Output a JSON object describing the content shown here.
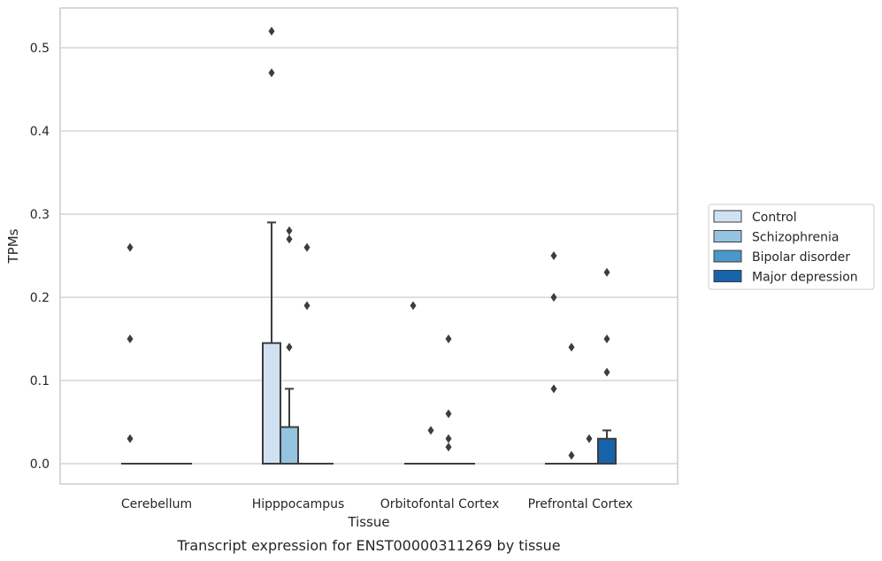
{
  "caption": "Transcript expression for ENST00000311269 by tissue",
  "chart_data": {
    "type": "box",
    "xlabel": "Tissue",
    "ylabel": "TPMs",
    "ylim": [
      -0.025,
      0.548
    ],
    "yticks": [
      "0.0",
      "0.1",
      "0.2",
      "0.3",
      "0.4",
      "0.5"
    ],
    "ytick_values": [
      0.0,
      0.1,
      0.2,
      0.3,
      0.4,
      0.5
    ],
    "categories": [
      "Cerebellum",
      "Hipppocampus",
      "Orbitofontal Cortex",
      "Prefrontal Cortex"
    ],
    "grid": true,
    "legend_position": "right",
    "series": [
      {
        "name": "Control",
        "color": "#d0e1f2",
        "boxes": [
          {
            "q1": 0,
            "median": 0,
            "q3": 0,
            "whisker_low": 0,
            "whisker_high": 0,
            "outliers": [
              0.26,
              0.15,
              0.03
            ]
          },
          {
            "q1": 0,
            "median": 0,
            "q3": 0.145,
            "whisker_low": 0,
            "whisker_high": 0.29,
            "outliers": [
              0.47,
              0.52
            ]
          },
          {
            "q1": 0,
            "median": 0,
            "q3": 0,
            "whisker_low": 0,
            "whisker_high": 0,
            "outliers": [
              0.19
            ]
          },
          {
            "q1": 0,
            "median": 0,
            "q3": 0,
            "whisker_low": 0,
            "whisker_high": 0,
            "outliers": [
              0.25,
              0.2,
              0.09
            ]
          }
        ]
      },
      {
        "name": "Schizophrenia",
        "color": "#94c4df",
        "boxes": [
          {
            "q1": 0,
            "median": 0,
            "q3": 0,
            "whisker_low": 0,
            "whisker_high": 0,
            "outliers": []
          },
          {
            "q1": 0,
            "median": 0,
            "q3": 0.044,
            "whisker_low": 0,
            "whisker_high": 0.09,
            "outliers": [
              0.28,
              0.27,
              0.14
            ]
          },
          {
            "q1": 0,
            "median": 0,
            "q3": 0,
            "whisker_low": 0,
            "whisker_high": 0,
            "outliers": [
              0.04
            ]
          },
          {
            "q1": 0,
            "median": 0,
            "q3": 0,
            "whisker_low": 0,
            "whisker_high": 0,
            "outliers": [
              0.14,
              0.01
            ]
          }
        ]
      },
      {
        "name": "Bipolar disorder",
        "color": "#4a98c9",
        "boxes": [
          {
            "q1": 0,
            "median": 0,
            "q3": 0,
            "whisker_low": 0,
            "whisker_high": 0,
            "outliers": []
          },
          {
            "q1": 0,
            "median": 0,
            "q3": 0,
            "whisker_low": 0,
            "whisker_high": 0,
            "outliers": [
              0.26,
              0.19
            ]
          },
          {
            "q1": 0,
            "median": 0,
            "q3": 0,
            "whisker_low": 0,
            "whisker_high": 0,
            "outliers": [
              0.03,
              0.15,
              0.06,
              0.02
            ]
          },
          {
            "q1": 0,
            "median": 0,
            "q3": 0,
            "whisker_low": 0,
            "whisker_high": 0,
            "outliers": [
              0.03
            ]
          }
        ]
      },
      {
        "name": "Major depression",
        "color": "#1764ab",
        "boxes": [
          {
            "q1": 0,
            "median": 0,
            "q3": 0,
            "whisker_low": 0,
            "whisker_high": 0,
            "outliers": []
          },
          {
            "q1": 0,
            "median": 0,
            "q3": 0,
            "whisker_low": 0,
            "whisker_high": 0,
            "outliers": []
          },
          {
            "q1": 0,
            "median": 0,
            "q3": 0,
            "whisker_low": 0,
            "whisker_high": 0,
            "outliers": []
          },
          {
            "q1": 0,
            "median": 0,
            "q3": 0.03,
            "whisker_low": 0,
            "whisker_high": 0.04,
            "outliers": [
              0.23,
              0.15,
              0.11
            ]
          }
        ]
      }
    ],
    "style": {
      "grid_color": "#cccccc",
      "box_edge_color": "#3d3d3d",
      "outlier_color": "#3d3d3d",
      "frame_color": "#cccccc"
    }
  }
}
